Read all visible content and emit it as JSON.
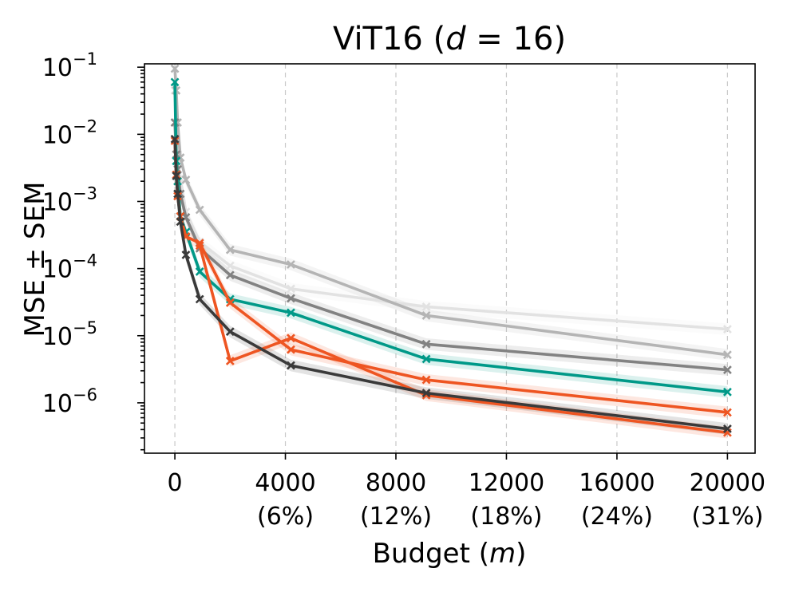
{
  "chart_data": {
    "type": "line",
    "title_text": "ViT16 (",
    "title_math": "d",
    "title_rest": " = 16)",
    "xlabel_text": "Budget (",
    "xlabel_math": "m",
    "xlabel_close": ")",
    "ylabel": "MSE ± SEM",
    "yscale": "log",
    "xlim": [
      -1100,
      21000
    ],
    "ylim_exp": [
      -6.75,
      -0.95
    ],
    "x_ticks": [
      {
        "value": 0,
        "label": "0",
        "sub": ""
      },
      {
        "value": 4000,
        "label": "4000",
        "sub": "(6%)"
      },
      {
        "value": 8000,
        "label": "8000",
        "sub": "(12%)"
      },
      {
        "value": 12000,
        "label": "12000",
        "sub": "(18%)"
      },
      {
        "value": 16000,
        "label": "16000",
        "sub": "(24%)"
      },
      {
        "value": 20000,
        "label": "20000",
        "sub": "(31%)"
      }
    ],
    "y_ticks": [
      {
        "exp": -1,
        "base": "10",
        "sup": "−1"
      },
      {
        "exp": -2,
        "base": "10",
        "sup": "−2"
      },
      {
        "exp": -3,
        "base": "10",
        "sup": "−3"
      },
      {
        "exp": -4,
        "base": "10",
        "sup": "−4"
      },
      {
        "exp": -5,
        "base": "10",
        "sup": "−5"
      },
      {
        "exp": -6,
        "base": "10",
        "sup": "−6"
      }
    ],
    "grid": "vertical dashed",
    "series": [
      {
        "name": "series-lightest",
        "color": "#e2e2e2",
        "x": [
          0,
          50,
          100,
          200,
          400,
          900,
          2000,
          4200,
          9100,
          20000
        ],
        "y": [
          0.045,
          0.015,
          0.005,
          0.0022,
          0.0007,
          0.00025,
          0.00011,
          5e-05,
          2.7e-05,
          1.25e-05
        ]
      },
      {
        "name": "series-light",
        "color": "#b4b4b4",
        "x": [
          0,
          50,
          100,
          200,
          400,
          900,
          2000,
          4200,
          9100,
          20000
        ],
        "y": [
          0.095,
          0.045,
          0.015,
          0.0045,
          0.0021,
          0.00075,
          0.00019,
          0.000115,
          2e-05,
          5.2e-06
        ]
      },
      {
        "name": "series-mid",
        "color": "#828282",
        "x": [
          0,
          50,
          100,
          200,
          400,
          900,
          2000,
          4200,
          9100,
          20000
        ],
        "y": [
          0.015,
          0.005,
          0.003,
          0.0013,
          0.00058,
          0.0002,
          8e-05,
          3.6e-05,
          7.5e-06,
          3.1e-06
        ]
      },
      {
        "name": "series-teal",
        "color": "#009988",
        "x": [
          0,
          50,
          100,
          200,
          400,
          900,
          2000,
          4200,
          9100,
          20000
        ],
        "y": [
          0.06,
          0.004,
          0.002,
          0.0006,
          0.00035,
          9e-05,
          3.5e-05,
          2.2e-05,
          4.5e-06,
          1.45e-06
        ]
      },
      {
        "name": "series-orange",
        "color": "#ee5522",
        "x": [
          0,
          50,
          100,
          200,
          400,
          900,
          2000,
          4200,
          9100,
          20000
        ],
        "y": [
          0.008,
          0.0025,
          0.0012,
          0.0006,
          0.0003,
          0.00024,
          3.1e-05,
          6.2e-06,
          2.2e-06,
          7.2e-07
        ]
      },
      {
        "name": "series-orange-2",
        "color": "#ee5522",
        "x": [
          900,
          2000,
          4200,
          9100,
          20000
        ],
        "y": [
          0.00022,
          4.2e-06,
          9.2e-06,
          1.3e-06,
          3.6e-07
        ]
      },
      {
        "name": "series-dark",
        "color": "#3a3a3a",
        "x": [
          0,
          50,
          100,
          200,
          400,
          900,
          2000,
          4200,
          9100,
          20000
        ],
        "y": [
          0.0085,
          0.0024,
          0.0013,
          0.0005,
          0.00016,
          3.5e-05,
          1.15e-05,
          3.6e-06,
          1.4e-06,
          4.1e-07
        ]
      }
    ]
  }
}
